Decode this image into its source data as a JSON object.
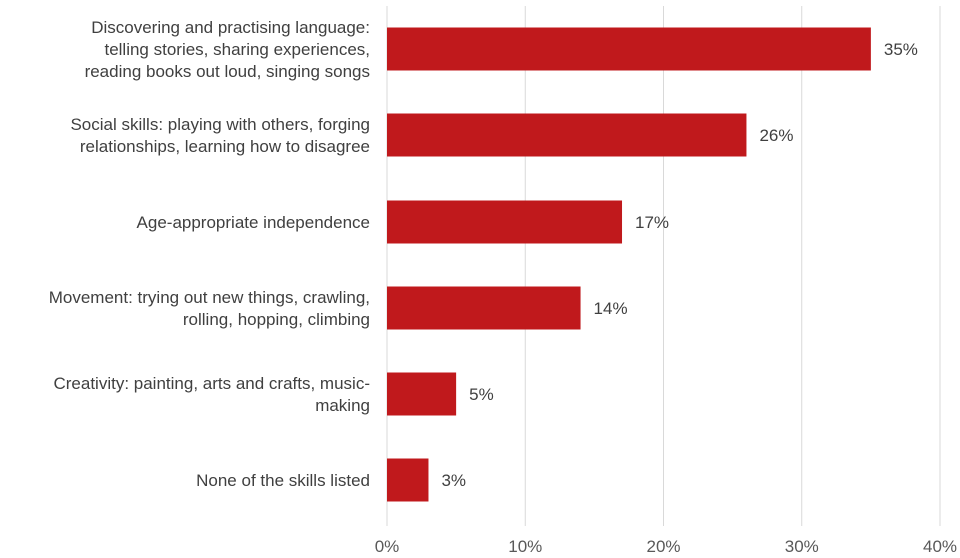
{
  "chart_data": {
    "type": "bar",
    "orientation": "horizontal",
    "categories": [
      [
        "Discovering and practising language:",
        "telling stories, sharing experiences,",
        "reading books out loud, singing songs"
      ],
      [
        "Social skills: playing with others, forging",
        "relationships, learning how to disagree"
      ],
      [
        "Age-appropriate independence"
      ],
      [
        "Movement: trying out new things, crawling,",
        "rolling, hopping, climbing"
      ],
      [
        "Creativity: painting, arts and crafts, music-",
        "making"
      ],
      [
        "None of the skills listed"
      ]
    ],
    "values": [
      35,
      26,
      17,
      14,
      5,
      3
    ],
    "value_labels": [
      "35%",
      "26%",
      "17%",
      "14%",
      "5%",
      "3%"
    ],
    "xlim": [
      0,
      40
    ],
    "ticks": [
      0,
      10,
      20,
      30,
      40
    ],
    "tick_labels": [
      "0%",
      "10%",
      "20%",
      "30%",
      "40%"
    ],
    "grid": true,
    "bar_color": "#C0191C"
  }
}
